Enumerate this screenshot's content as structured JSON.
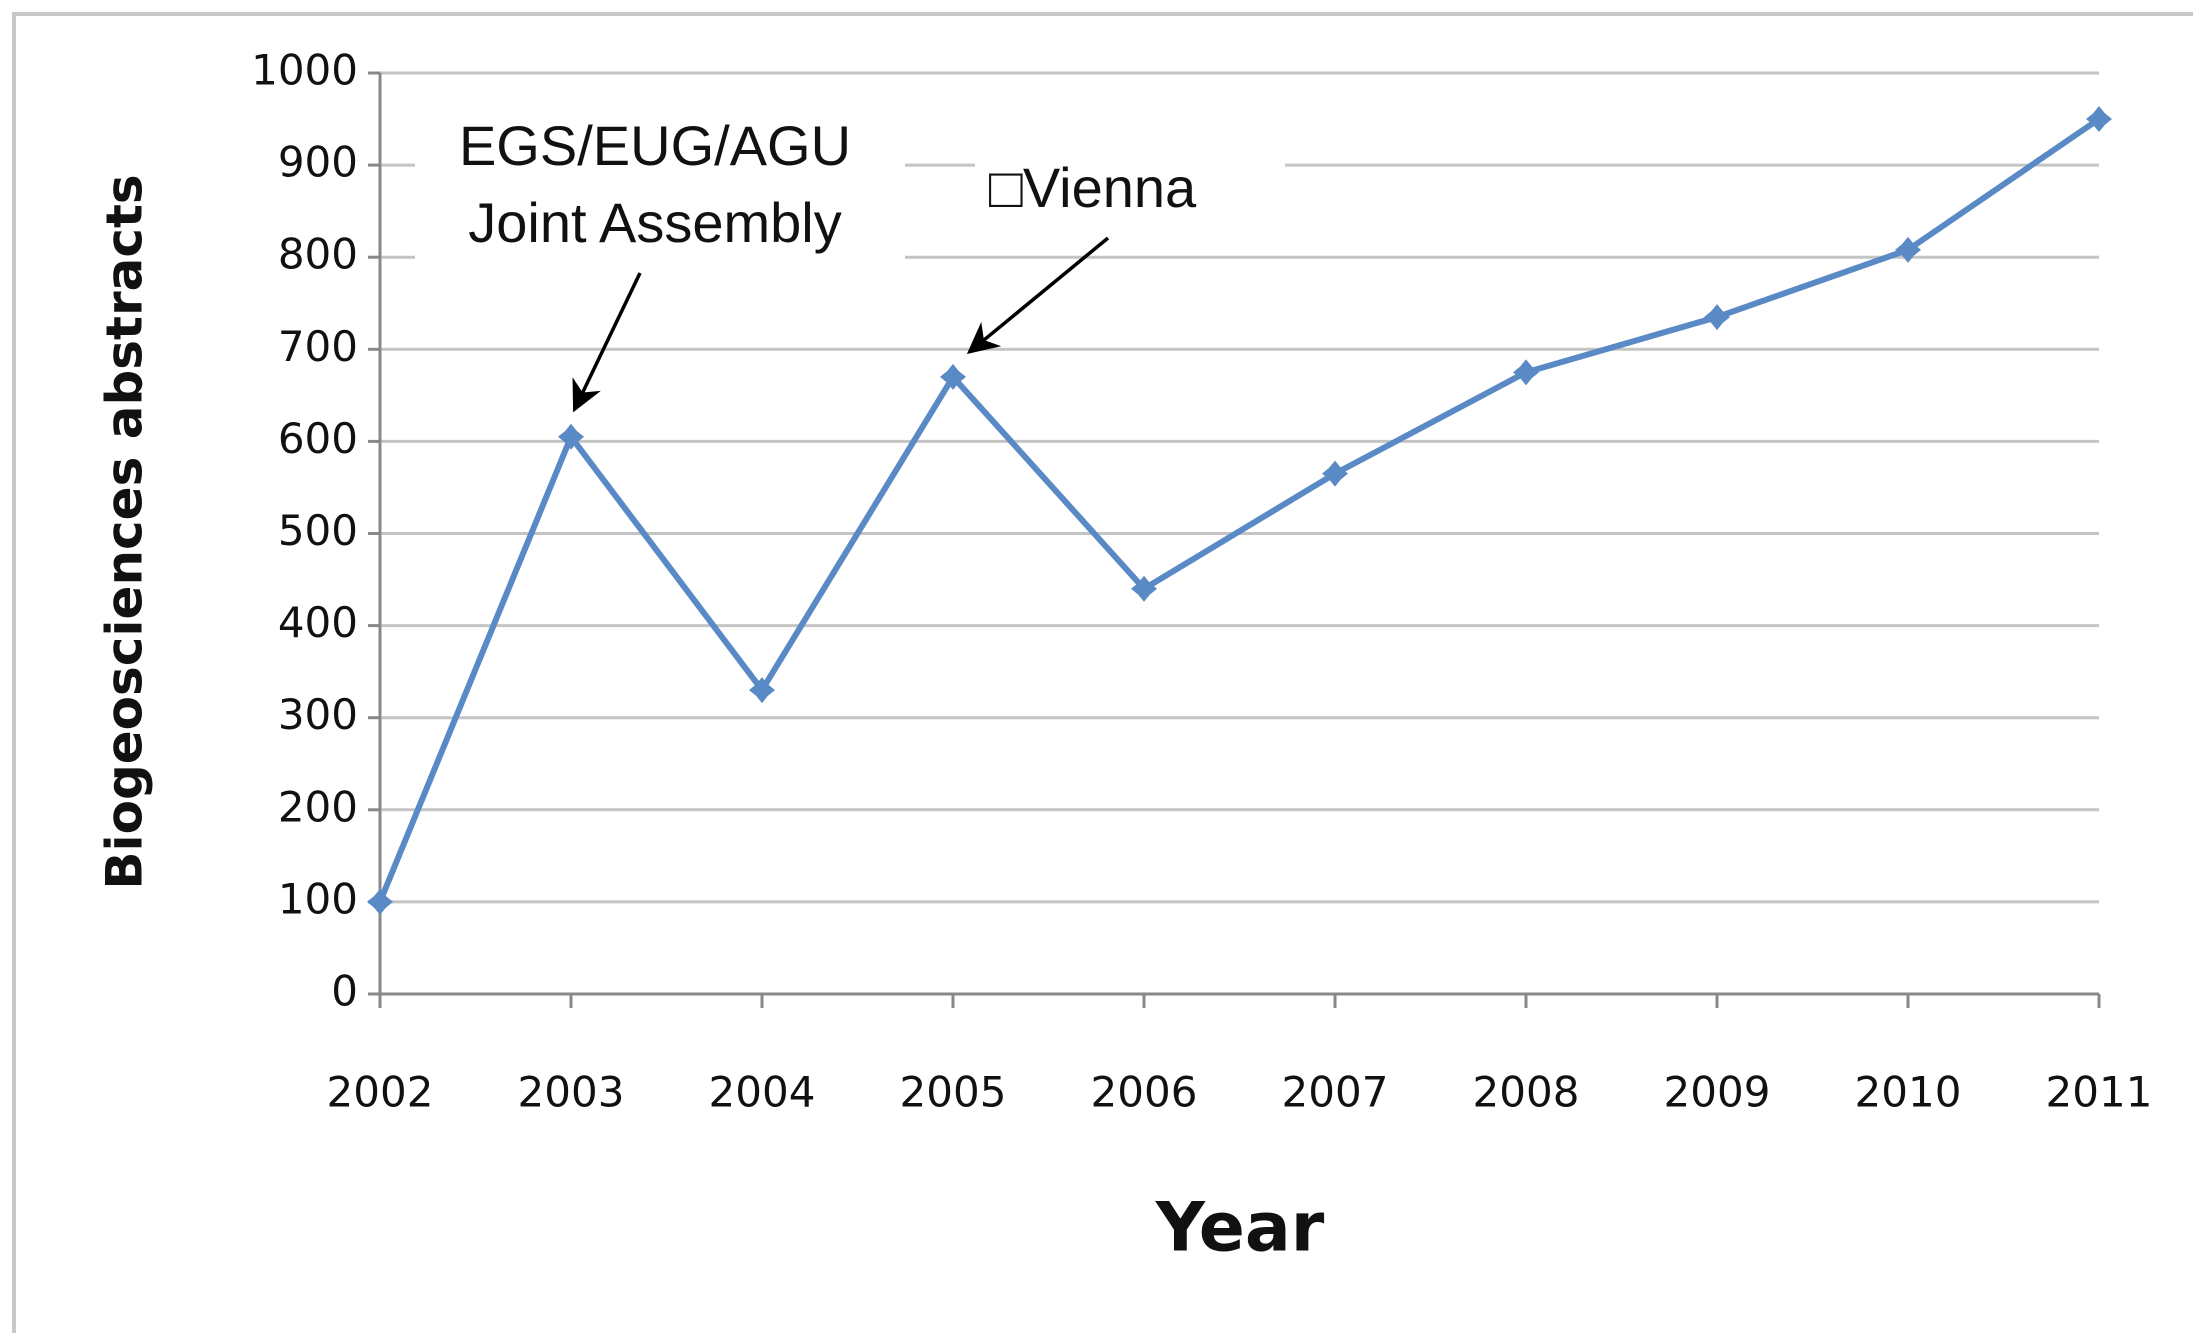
{
  "chart_data": {
    "type": "line",
    "x_label": "Year",
    "y_label": "Biogeosciences abstracts",
    "categories": [
      "2002",
      "2003",
      "2004",
      "2005",
      "2006",
      "2007",
      "2008",
      "2009",
      "2010",
      "2011"
    ],
    "series": [
      {
        "name": "Biogeosciences abstracts",
        "color": "#5a8ac6",
        "values": [
          100,
          605,
          330,
          670,
          440,
          565,
          675,
          735,
          808,
          950
        ]
      }
    ],
    "ylim": [
      0,
      1000
    ],
    "yticks": [
      0,
      100,
      200,
      300,
      400,
      500,
      600,
      700,
      800,
      900,
      1000
    ],
    "grid": true,
    "annotations": [
      {
        "lines": [
          "EGS/EUG/AGU",
          "Joint Assembly"
        ],
        "category": 1
      },
      {
        "lines": [
          "□Vienna"
        ],
        "category": 3
      }
    ]
  }
}
